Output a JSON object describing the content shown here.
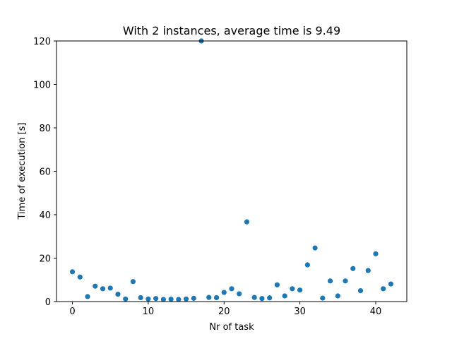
{
  "chart_data": {
    "type": "scatter",
    "title": "With 2 instances, average time is 9.49",
    "xlabel": "Nr of task",
    "ylabel": "Time of execution [s]",
    "xlim": [
      -2.1,
      44.1
    ],
    "ylim": [
      0,
      120
    ],
    "xticks": [
      0,
      10,
      20,
      30,
      40
    ],
    "yticks": [
      0,
      20,
      40,
      60,
      80,
      100,
      120
    ],
    "xtick_labels": [
      "0",
      "10",
      "20",
      "30",
      "40"
    ],
    "ytick_labels": [
      "0",
      "20",
      "40",
      "60",
      "80",
      "100",
      "120"
    ],
    "grid": false,
    "marker_color": "#1f77b4",
    "x": [
      0,
      1,
      2,
      3,
      4,
      5,
      6,
      7,
      8,
      9,
      10,
      11,
      12,
      13,
      14,
      15,
      16,
      17,
      18,
      19,
      20,
      21,
      22,
      23,
      24,
      25,
      26,
      27,
      28,
      29,
      30,
      31,
      32,
      33,
      34,
      35,
      36,
      37,
      38,
      39,
      40,
      41,
      42
    ],
    "y": [
      13.7,
      11.3,
      2.3,
      7.1,
      5.9,
      6.2,
      3.4,
      1.2,
      9.2,
      1.8,
      1.2,
      1.4,
      1.0,
      1.1,
      1.0,
      1.2,
      1.5,
      120.0,
      1.9,
      1.8,
      4.2,
      5.9,
      3.6,
      36.7,
      1.9,
      1.4,
      1.7,
      7.7,
      2.6,
      5.9,
      5.3,
      16.9,
      24.7,
      1.6,
      9.5,
      2.6,
      9.5,
      15.2,
      5.0,
      14.3,
      22.0,
      5.9,
      8.1
    ]
  }
}
